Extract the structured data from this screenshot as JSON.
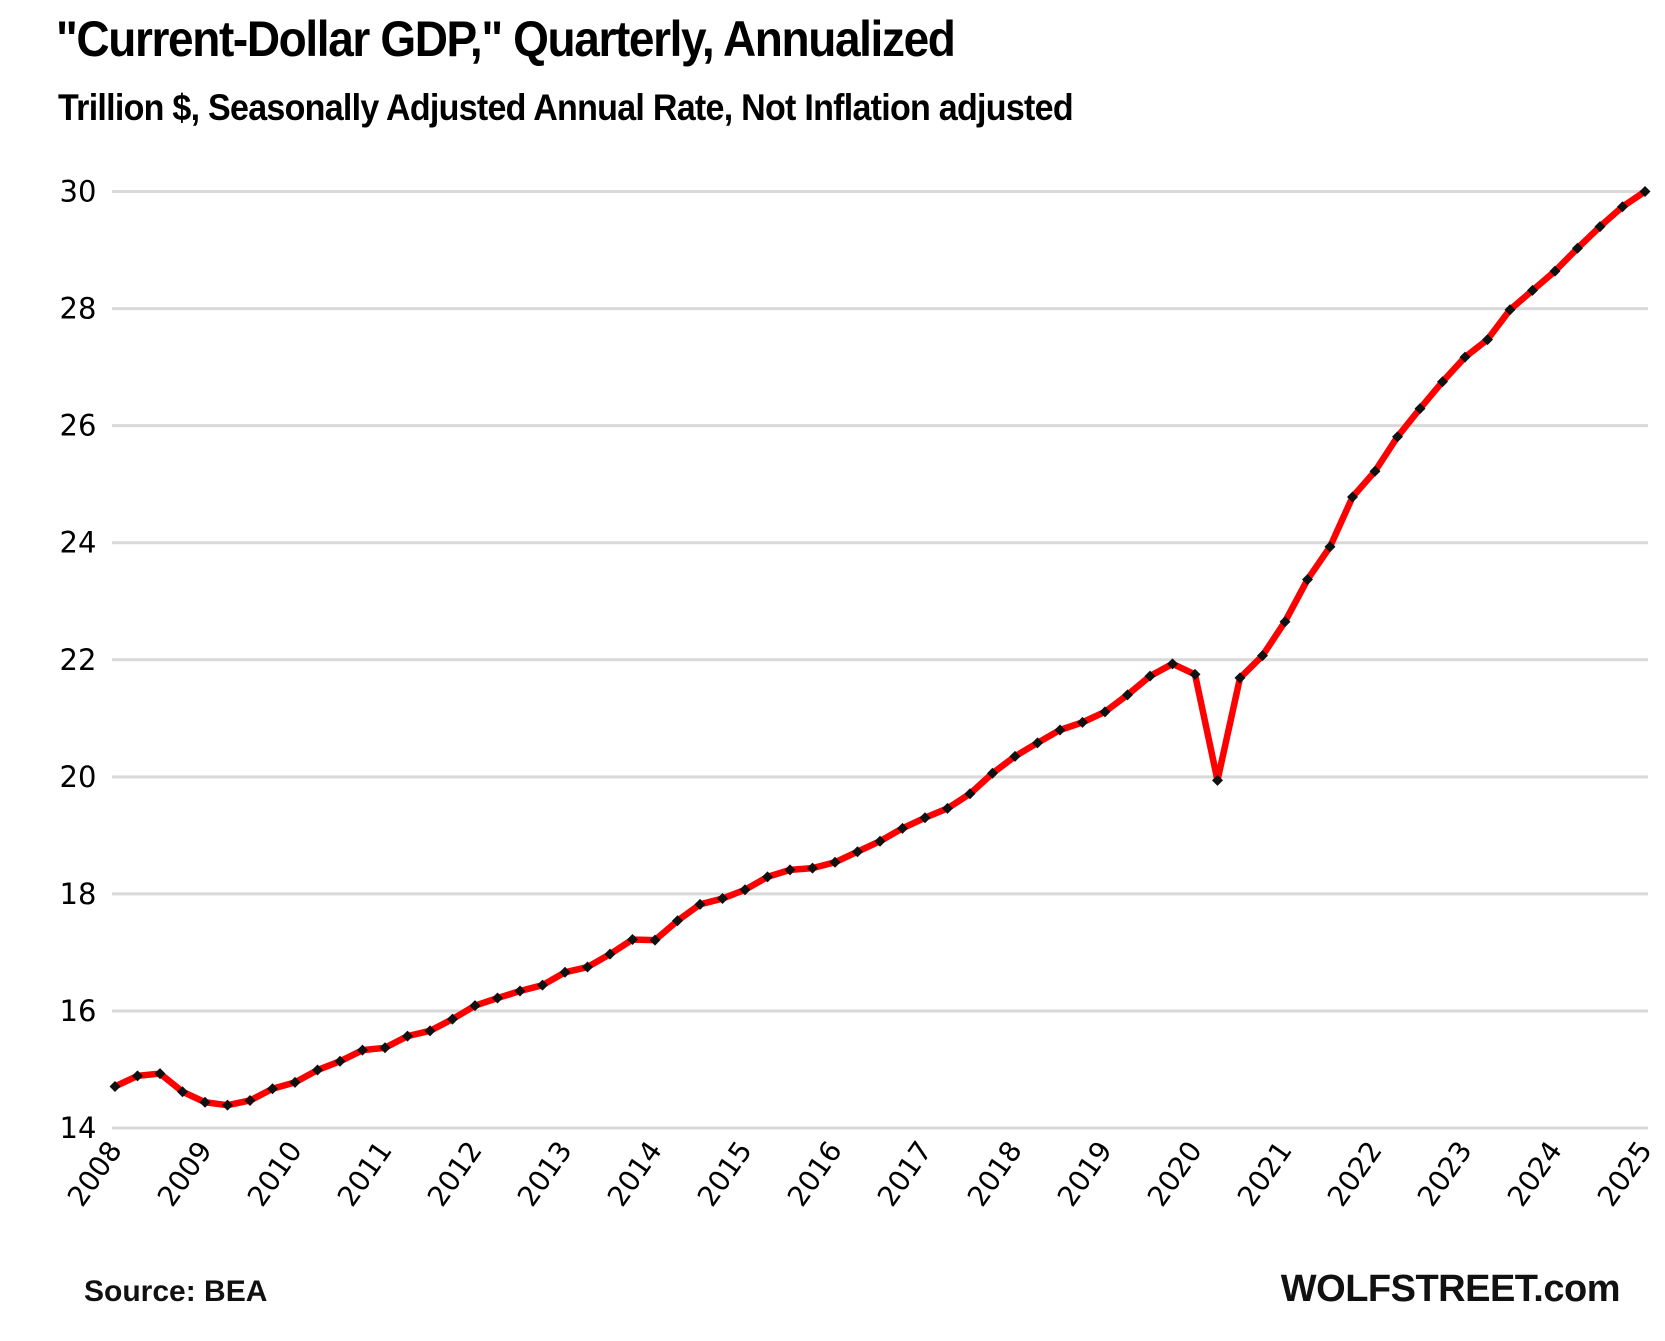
{
  "chart_data": {
    "type": "line",
    "title": "\"Current-Dollar GDP,\" Quarterly, Annualized",
    "subtitle": "Trillion $, Seasonally Adjusted Annual Rate, Not Inflation adjusted",
    "xlabel": "",
    "ylabel": "",
    "ylim": [
      14,
      30
    ],
    "yticks": [
      14,
      16,
      18,
      20,
      22,
      24,
      26,
      28,
      30
    ],
    "xtick_labels": [
      "2008",
      "2009",
      "2010",
      "2011",
      "2012",
      "2013",
      "2014",
      "2015",
      "2016",
      "2017",
      "2018",
      "2019",
      "2020",
      "2021",
      "2022",
      "2023",
      "2024",
      "2025"
    ],
    "x_frequency": "quarterly",
    "x_start": "2008 Q1",
    "x_end": "2025 Q1",
    "grid": "horizontal",
    "legend": "none",
    "series": [
      {
        "name": "Current-Dollar GDP",
        "line_color": "#ff0000",
        "marker_color": "#111111",
        "marker": "diamond",
        "values": [
          14.71,
          14.89,
          14.93,
          14.62,
          14.44,
          14.39,
          14.47,
          14.67,
          14.78,
          14.99,
          15.14,
          15.33,
          15.37,
          15.57,
          15.66,
          15.86,
          16.09,
          16.22,
          16.34,
          16.44,
          16.66,
          16.75,
          16.97,
          17.22,
          17.21,
          17.54,
          17.82,
          17.92,
          18.07,
          18.29,
          18.41,
          18.44,
          18.54,
          18.72,
          18.9,
          19.12,
          19.3,
          19.46,
          19.71,
          20.06,
          20.35,
          20.58,
          20.8,
          20.93,
          21.11,
          21.4,
          21.72,
          21.93,
          21.75,
          19.94,
          21.69,
          22.07,
          22.65,
          23.37,
          23.93,
          24.78,
          25.22,
          25.81,
          26.29,
          26.75,
          27.17,
          27.47,
          27.98,
          28.31,
          28.64,
          29.03,
          29.4,
          29.74,
          30.0
        ]
      }
    ],
    "annotations": {
      "source": "Source: BEA",
      "brand": "WOLFSTREET.com"
    }
  },
  "colors": {
    "line": "#ff0000",
    "marker": "#111111",
    "grid": "#d9d9d9",
    "text": "#000000"
  }
}
